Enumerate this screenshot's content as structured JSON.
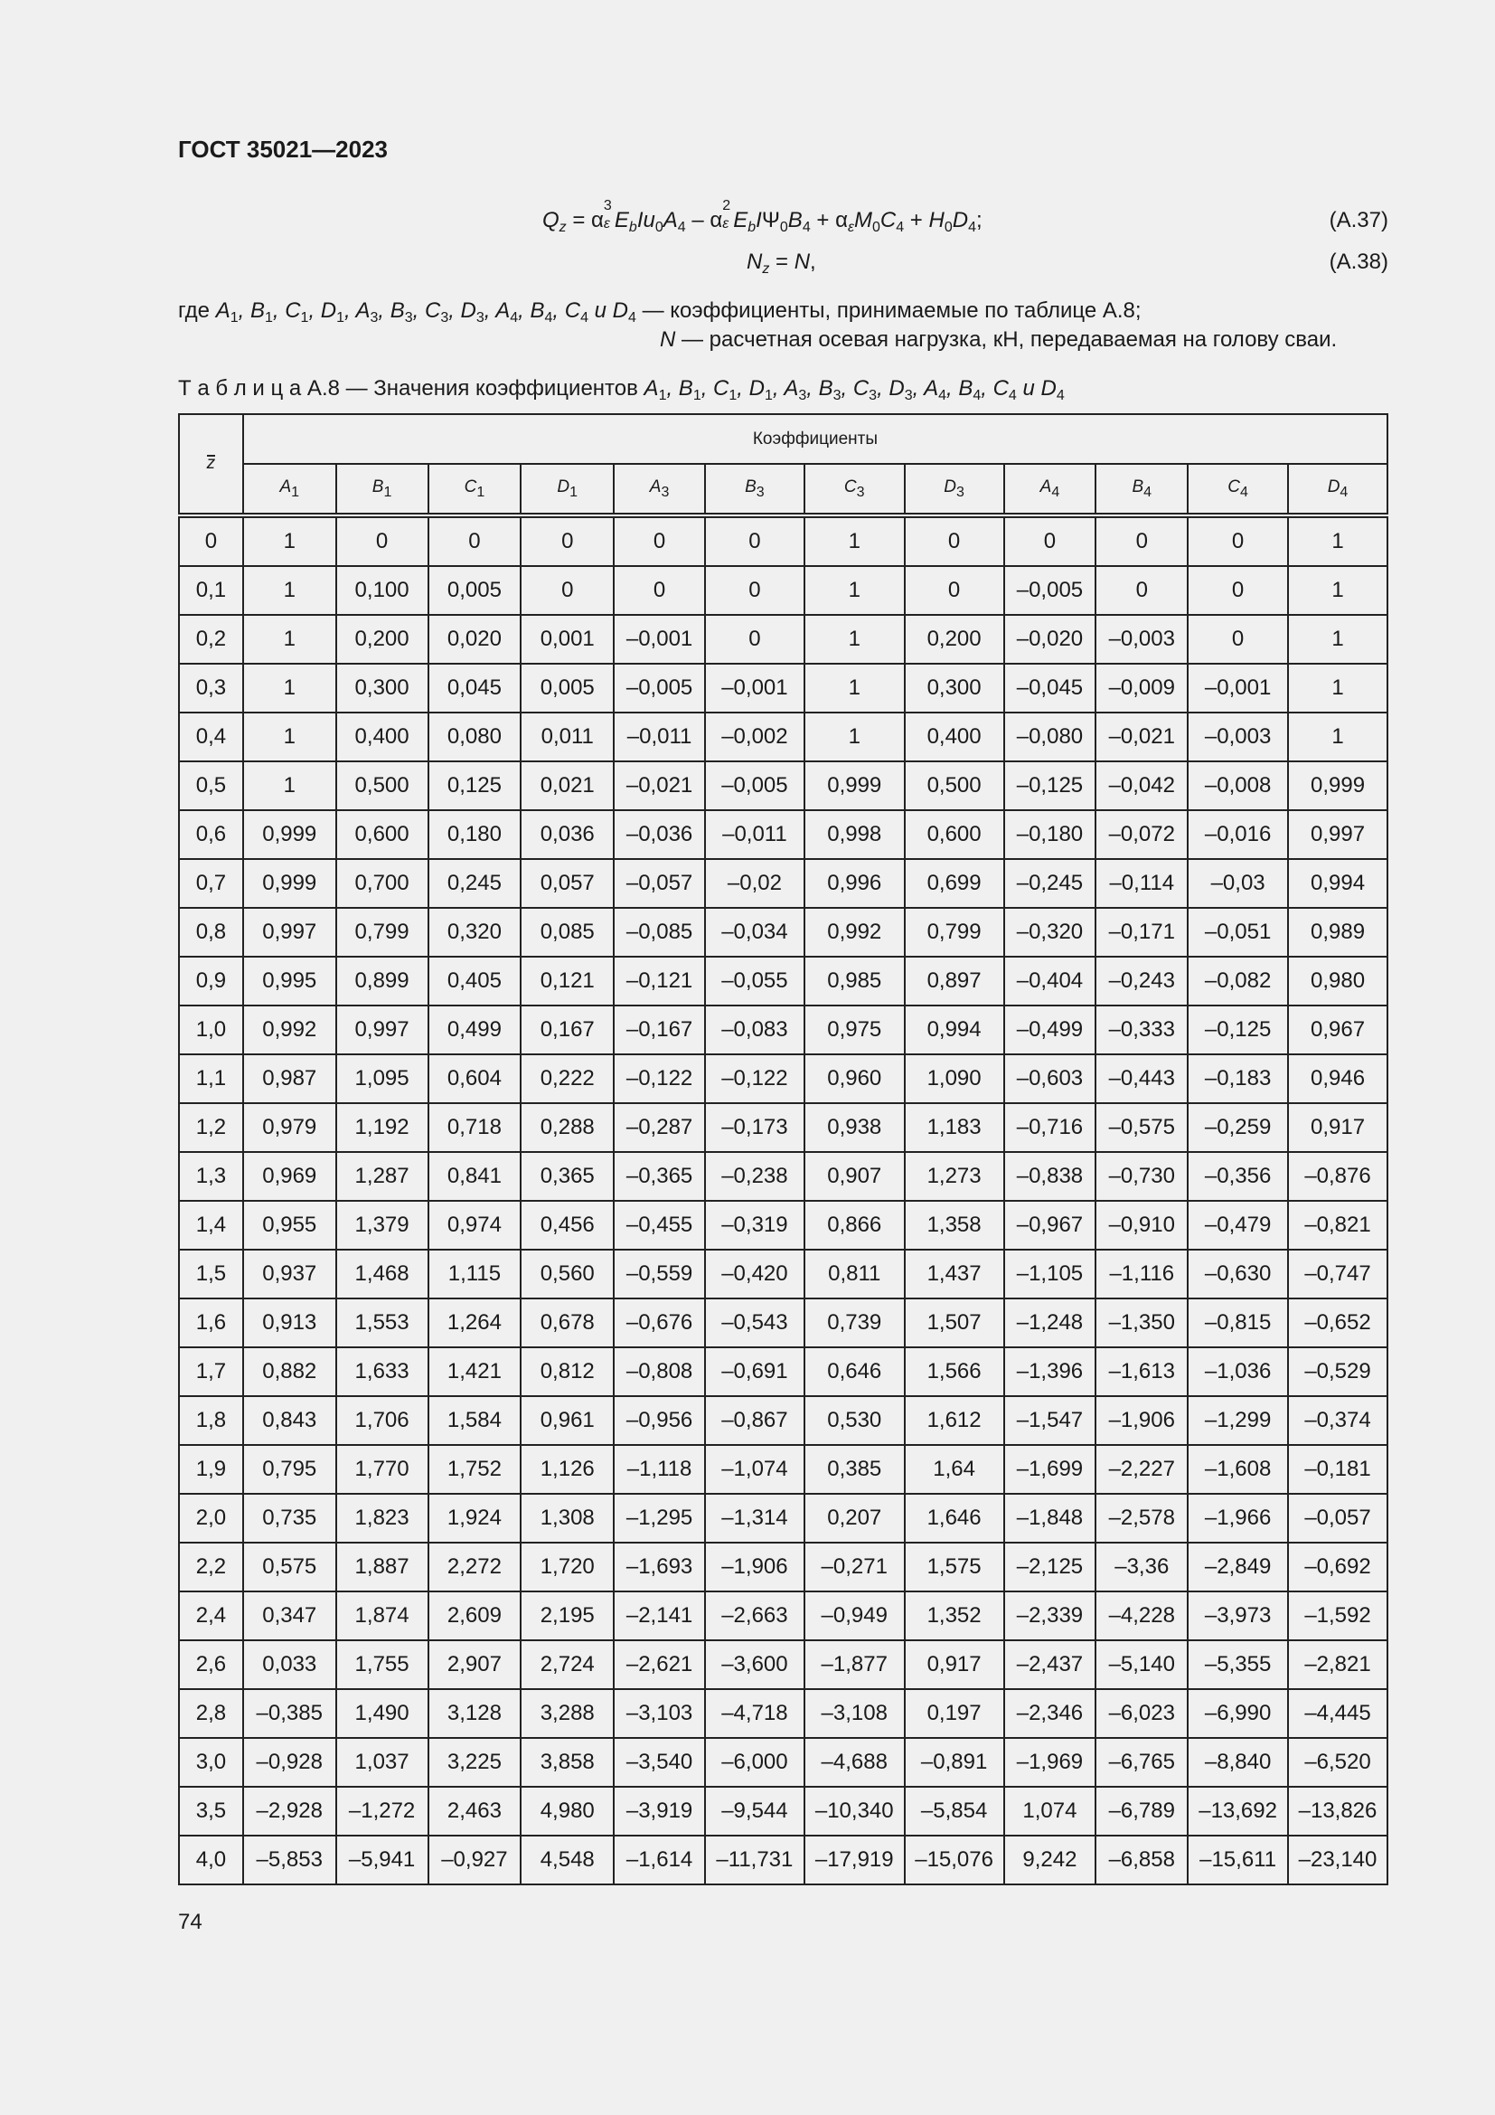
{
  "header": {
    "doc_title": "ГОСТ 35021—2023"
  },
  "formulas": [
    {
      "number": "(A.37)",
      "segments": [
        {
          "t": "Q",
          "i": true
        },
        {
          "sub": "z"
        },
        {
          "t": " = α"
        },
        {
          "sup": "3",
          "sub": "ε"
        },
        {
          "t": "E",
          "i": true
        },
        {
          "sub": "b"
        },
        {
          "t": "Iu",
          "i": true
        },
        {
          "sub": "0"
        },
        {
          "t": "A",
          "i": true
        },
        {
          "sub": "4"
        },
        {
          "t": " – α"
        },
        {
          "sup": "2",
          "sub": "ε"
        },
        {
          "t": "E",
          "i": true
        },
        {
          "sub": "b"
        },
        {
          "t": "I",
          "i": true
        },
        {
          "t": "Ψ"
        },
        {
          "sub": "0"
        },
        {
          "t": "B",
          "i": true
        },
        {
          "sub": "4"
        },
        {
          "t": " + α"
        },
        {
          "sub": "ε"
        },
        {
          "t": "M",
          "i": true
        },
        {
          "sub": "0"
        },
        {
          "t": "C",
          "i": true
        },
        {
          "sub": "4"
        },
        {
          "t": " + "
        },
        {
          "t": "H",
          "i": true
        },
        {
          "sub": "0"
        },
        {
          "t": "D",
          "i": true
        },
        {
          "sub": "4"
        },
        {
          "t": ";"
        }
      ]
    },
    {
      "number": "(A.38)",
      "segments": [
        {
          "t": "N",
          "i": true
        },
        {
          "sub": "z"
        },
        {
          "t": " = "
        },
        {
          "t": "N",
          "i": true
        },
        {
          "t": ","
        }
      ]
    }
  ],
  "legend": {
    "line1_prefix": "где",
    "line1_symbols": "A1, B1, C1, D1, A3, B3, C3, D3, A4, B4, C4 и D4",
    "line1_text": "— коэффициенты, принимаемые по таблице А.8;",
    "line2_symbol": "N",
    "line2_text": "— расчетная осевая нагрузка, кН, передаваемая на голову сваи."
  },
  "table": {
    "caption_label": "Т а б л и ц а  А.8 — Значения коэффициентов",
    "caption_symbols": "A1, B1, C1, D1, A3, B3, C3, D3, A4, B4, C4 и D4",
    "z_header": "z",
    "group_header": "Коэффициенты",
    "columns": [
      {
        "l": "A",
        "s": "1"
      },
      {
        "l": "B",
        "s": "1"
      },
      {
        "l": "C",
        "s": "1"
      },
      {
        "l": "D",
        "s": "1"
      },
      {
        "l": "A",
        "s": "3"
      },
      {
        "l": "B",
        "s": "3"
      },
      {
        "l": "C",
        "s": "3"
      },
      {
        "l": "D",
        "s": "3"
      },
      {
        "l": "A",
        "s": "4"
      },
      {
        "l": "B",
        "s": "4"
      },
      {
        "l": "C",
        "s": "4"
      },
      {
        "l": "D",
        "s": "4"
      }
    ],
    "rows": [
      [
        "0",
        "1",
        "0",
        "0",
        "0",
        "0",
        "0",
        "1",
        "0",
        "0",
        "0",
        "0",
        "1"
      ],
      [
        "0,1",
        "1",
        "0,100",
        "0,005",
        "0",
        "0",
        "0",
        "1",
        "0",
        "–0,005",
        "0",
        "0",
        "1"
      ],
      [
        "0,2",
        "1",
        "0,200",
        "0,020",
        "0,001",
        "–0,001",
        "0",
        "1",
        "0,200",
        "–0,020",
        "–0,003",
        "0",
        "1"
      ],
      [
        "0,3",
        "1",
        "0,300",
        "0,045",
        "0,005",
        "–0,005",
        "–0,001",
        "1",
        "0,300",
        "–0,045",
        "–0,009",
        "–0,001",
        "1"
      ],
      [
        "0,4",
        "1",
        "0,400",
        "0,080",
        "0,011",
        "–0,011",
        "–0,002",
        "1",
        "0,400",
        "–0,080",
        "–0,021",
        "–0,003",
        "1"
      ],
      [
        "0,5",
        "1",
        "0,500",
        "0,125",
        "0,021",
        "–0,021",
        "–0,005",
        "0,999",
        "0,500",
        "–0,125",
        "–0,042",
        "–0,008",
        "0,999"
      ],
      [
        "0,6",
        "0,999",
        "0,600",
        "0,180",
        "0,036",
        "–0,036",
        "–0,011",
        "0,998",
        "0,600",
        "–0,180",
        "–0,072",
        "–0,016",
        "0,997"
      ],
      [
        "0,7",
        "0,999",
        "0,700",
        "0,245",
        "0,057",
        "–0,057",
        "–0,02",
        "0,996",
        "0,699",
        "–0,245",
        "–0,114",
        "–0,03",
        "0,994"
      ],
      [
        "0,8",
        "0,997",
        "0,799",
        "0,320",
        "0,085",
        "–0,085",
        "–0,034",
        "0,992",
        "0,799",
        "–0,320",
        "–0,171",
        "–0,051",
        "0,989"
      ],
      [
        "0,9",
        "0,995",
        "0,899",
        "0,405",
        "0,121",
        "–0,121",
        "–0,055",
        "0,985",
        "0,897",
        "–0,404",
        "–0,243",
        "–0,082",
        "0,980"
      ],
      [
        "1,0",
        "0,992",
        "0,997",
        "0,499",
        "0,167",
        "–0,167",
        "–0,083",
        "0,975",
        "0,994",
        "–0,499",
        "–0,333",
        "–0,125",
        "0,967"
      ],
      [
        "1,1",
        "0,987",
        "1,095",
        "0,604",
        "0,222",
        "–0,122",
        "–0,122",
        "0,960",
        "1,090",
        "–0,603",
        "–0,443",
        "–0,183",
        "0,946"
      ],
      [
        "1,2",
        "0,979",
        "1,192",
        "0,718",
        "0,288",
        "–0,287",
        "–0,173",
        "0,938",
        "1,183",
        "–0,716",
        "–0,575",
        "–0,259",
        "0,917"
      ],
      [
        "1,3",
        "0,969",
        "1,287",
        "0,841",
        "0,365",
        "–0,365",
        "–0,238",
        "0,907",
        "1,273",
        "–0,838",
        "–0,730",
        "–0,356",
        "–0,876"
      ],
      [
        "1,4",
        "0,955",
        "1,379",
        "0,974",
        "0,456",
        "–0,455",
        "–0,319",
        "0,866",
        "1,358",
        "–0,967",
        "–0,910",
        "–0,479",
        "–0,821"
      ],
      [
        "1,5",
        "0,937",
        "1,468",
        "1,115",
        "0,560",
        "–0,559",
        "–0,420",
        "0,811",
        "1,437",
        "–1,105",
        "–1,116",
        "–0,630",
        "–0,747"
      ],
      [
        "1,6",
        "0,913",
        "1,553",
        "1,264",
        "0,678",
        "–0,676",
        "–0,543",
        "0,739",
        "1,507",
        "–1,248",
        "–1,350",
        "–0,815",
        "–0,652"
      ],
      [
        "1,7",
        "0,882",
        "1,633",
        "1,421",
        "0,812",
        "–0,808",
        "–0,691",
        "0,646",
        "1,566",
        "–1,396",
        "–1,613",
        "–1,036",
        "–0,529"
      ],
      [
        "1,8",
        "0,843",
        "1,706",
        "1,584",
        "0,961",
        "–0,956",
        "–0,867",
        "0,530",
        "1,612",
        "–1,547",
        "–1,906",
        "–1,299",
        "–0,374"
      ],
      [
        "1,9",
        "0,795",
        "1,770",
        "1,752",
        "1,126",
        "–1,118",
        "–1,074",
        "0,385",
        "1,64",
        "–1,699",
        "–2,227",
        "–1,608",
        "–0,181"
      ],
      [
        "2,0",
        "0,735",
        "1,823",
        "1,924",
        "1,308",
        "–1,295",
        "–1,314",
        "0,207",
        "1,646",
        "–1,848",
        "–2,578",
        "–1,966",
        "–0,057"
      ],
      [
        "2,2",
        "0,575",
        "1,887",
        "2,272",
        "1,720",
        "–1,693",
        "–1,906",
        "–0,271",
        "1,575",
        "–2,125",
        "–3,36",
        "–2,849",
        "–0,692"
      ],
      [
        "2,4",
        "0,347",
        "1,874",
        "2,609",
        "2,195",
        "–2,141",
        "–2,663",
        "–0,949",
        "1,352",
        "–2,339",
        "–4,228",
        "–3,973",
        "–1,592"
      ],
      [
        "2,6",
        "0,033",
        "1,755",
        "2,907",
        "2,724",
        "–2,621",
        "–3,600",
        "–1,877",
        "0,917",
        "–2,437",
        "–5,140",
        "–5,355",
        "–2,821"
      ],
      [
        "2,8",
        "–0,385",
        "1,490",
        "3,128",
        "3,288",
        "–3,103",
        "–4,718",
        "–3,108",
        "0,197",
        "–2,346",
        "–6,023",
        "–6,990",
        "–4,445"
      ],
      [
        "3,0",
        "–0,928",
        "1,037",
        "3,225",
        "3,858",
        "–3,540",
        "–6,000",
        "–4,688",
        "–0,891",
        "–1,969",
        "–6,765",
        "–8,840",
        "–6,520"
      ],
      [
        "3,5",
        "–2,928",
        "–1,272",
        "2,463",
        "4,980",
        "–3,919",
        "–9,544",
        "–10,340",
        "–5,854",
        "1,074",
        "–6,789",
        "–13,692",
        "–13,826"
      ],
      [
        "4,0",
        "–5,853",
        "–5,941",
        "–0,927",
        "4,548",
        "–1,614",
        "–11,731",
        "–17,919",
        "–15,076",
        "9,242",
        "–6,858",
        "–15,611",
        "–23,140"
      ]
    ]
  },
  "footer": {
    "page_number": "74"
  }
}
